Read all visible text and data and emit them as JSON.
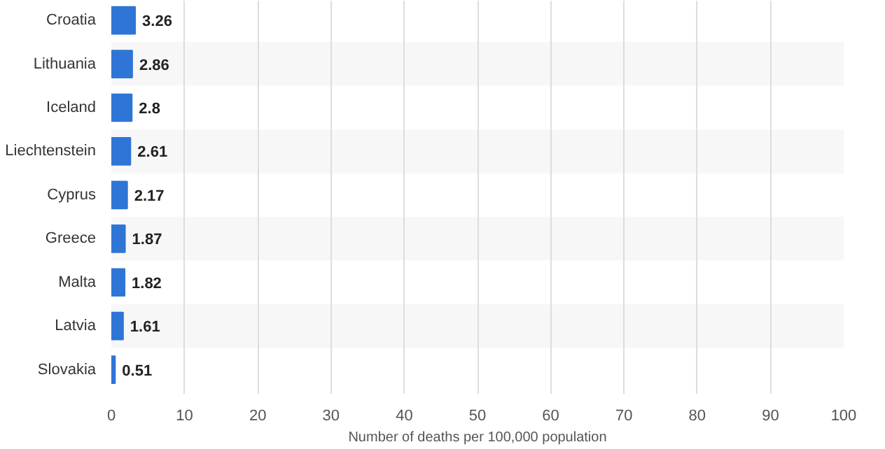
{
  "chart_data": {
    "type": "bar",
    "orientation": "horizontal",
    "categories": [
      "Croatia",
      "Lithuania",
      "Iceland",
      "Liechtenstein",
      "Cyprus",
      "Greece",
      "Malta",
      "Latvia",
      "Slovakia"
    ],
    "values": [
      3.26,
      2.86,
      2.8,
      2.61,
      2.17,
      1.87,
      1.82,
      1.61,
      0.51
    ],
    "color": "#2f75d6",
    "xlabel": "Number of deaths per 100,000 population",
    "xlim": [
      0,
      100
    ],
    "xticks": [
      0,
      10,
      20,
      30,
      40,
      50,
      60,
      70,
      80,
      90,
      100
    ],
    "grid": "x",
    "data_labels": true
  }
}
